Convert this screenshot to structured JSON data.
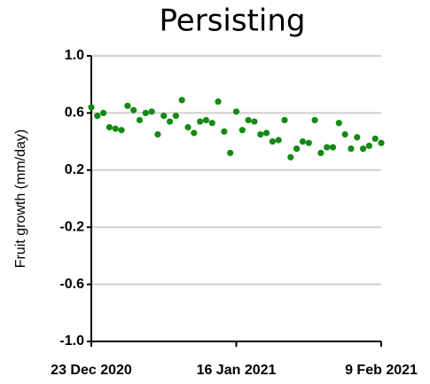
{
  "chart_data": {
    "type": "scatter",
    "title": "Persisting",
    "ylabel": "Fruit growth (mm/day)",
    "color": "#138a13",
    "grid": true,
    "ylim": [
      -1.0,
      1.0
    ],
    "yticks": [
      {
        "value": 1.0,
        "label": "1.0"
      },
      {
        "value": 0.6,
        "label": "0.6"
      },
      {
        "value": 0.2,
        "label": "0.2"
      },
      {
        "value": -0.2,
        "label": "-0.2"
      },
      {
        "value": -0.6,
        "label": "-0.6"
      },
      {
        "value": -1.0,
        "label": "-1.0"
      }
    ],
    "xlim": [
      "2020-12-23",
      "2021-02-09"
    ],
    "xticks": [
      {
        "value": "2020-12-23",
        "label": "23 Dec 2020"
      },
      {
        "value": "2021-01-16",
        "label": "16 Jan 2021"
      },
      {
        "value": "2021-02-09",
        "label": "9 Feb 2021"
      }
    ],
    "x": [
      "2020-12-23",
      "2020-12-24",
      "2020-12-25",
      "2020-12-26",
      "2020-12-27",
      "2020-12-28",
      "2020-12-29",
      "2020-12-30",
      "2020-12-31",
      "2021-01-01",
      "2021-01-02",
      "2021-01-03",
      "2021-01-04",
      "2021-01-05",
      "2021-01-06",
      "2021-01-07",
      "2021-01-08",
      "2021-01-09",
      "2021-01-10",
      "2021-01-11",
      "2021-01-12",
      "2021-01-13",
      "2021-01-14",
      "2021-01-15",
      "2021-01-16",
      "2021-01-17",
      "2021-01-18",
      "2021-01-19",
      "2021-01-20",
      "2021-01-21",
      "2021-01-22",
      "2021-01-23",
      "2021-01-24",
      "2021-01-25",
      "2021-01-26",
      "2021-01-27",
      "2021-01-28",
      "2021-01-29",
      "2021-01-30",
      "2021-01-31",
      "2021-02-01",
      "2021-02-02",
      "2021-02-03",
      "2021-02-04",
      "2021-02-05",
      "2021-02-06",
      "2021-02-07",
      "2021-02-08",
      "2021-02-09"
    ],
    "values": [
      0.64,
      0.58,
      0.6,
      0.5,
      0.49,
      0.48,
      0.65,
      0.62,
      0.55,
      0.6,
      0.61,
      0.45,
      0.58,
      0.54,
      0.58,
      0.69,
      0.5,
      0.46,
      0.54,
      0.55,
      0.53,
      0.68,
      0.47,
      0.32,
      0.61,
      0.48,
      0.55,
      0.54,
      0.45,
      0.46,
      0.4,
      0.41,
      0.55,
      0.29,
      0.35,
      0.4,
      0.39,
      0.55,
      0.32,
      0.36,
      0.36,
      0.53,
      0.45,
      0.35,
      0.43,
      0.35,
      0.37,
      0.42,
      0.39
    ]
  }
}
